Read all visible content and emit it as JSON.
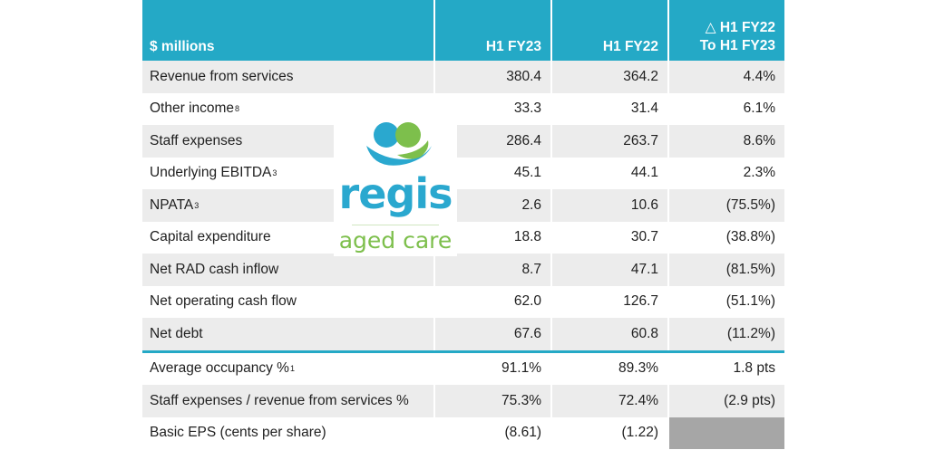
{
  "header": {
    "label": "$ millions",
    "col1": "H1 FY23",
    "col2": "H1 FY22",
    "col3_line1": "△ H1 FY22",
    "col3_line2": "To H1 FY23"
  },
  "rows": [
    {
      "label": "Revenue from services",
      "sup": "",
      "v1": "380.4",
      "v2": "364.2",
      "v3": "4.4%"
    },
    {
      "label": "Other income",
      "sup": "8",
      "v1": "33.3",
      "v2": "31.4",
      "v3": "6.1%"
    },
    {
      "label": "Staff expenses",
      "sup": "",
      "v1": "286.4",
      "v2": "263.7",
      "v3": "8.6%"
    },
    {
      "label": "Underlying EBITDA",
      "sup": "3",
      "v1": "45.1",
      "v2": "44.1",
      "v3": "2.3%"
    },
    {
      "label": "NPATA",
      "sup": "3",
      "v1": "2.6",
      "v2": "10.6",
      "v3": "(75.5%)"
    },
    {
      "label": "Capital expenditure",
      "sup": "",
      "v1": "18.8",
      "v2": "30.7",
      "v3": "(38.8%)"
    },
    {
      "label": "Net RAD cash inflow",
      "sup": "",
      "v1": "8.7",
      "v2": "47.1",
      "v3": "(81.5%)"
    },
    {
      "label": "Net operating cash flow",
      "sup": "",
      "v1": "62.0",
      "v2": "126.7",
      "v3": "(51.1%)"
    },
    {
      "label": "Net debt",
      "sup": "",
      "v1": "67.6",
      "v2": "60.8",
      "v3": "(11.2%)"
    }
  ],
  "rows2": [
    {
      "label": "Average occupancy %",
      "sup": "1",
      "v1": "91.1%",
      "v2": "89.3%",
      "v3": "1.8 pts"
    },
    {
      "label": "Staff expenses / revenue from services %",
      "sup": "",
      "v1": "75.3%",
      "v2": "72.4%",
      "v3": "(2.9 pts)"
    },
    {
      "label": "Basic EPS (cents per share)",
      "sup": "",
      "v1": "(8.61)",
      "v2": "(1.22)",
      "v3": ""
    }
  ],
  "logo": {
    "word1": "regis",
    "word2": "aged care",
    "color_blue": "#2aa8cf",
    "color_green": "#7dbf4c"
  },
  "colors": {
    "header_bg": "#24a9c6",
    "alt_row_bg": "#ececec",
    "grey_cell": "#a6a6a6"
  }
}
